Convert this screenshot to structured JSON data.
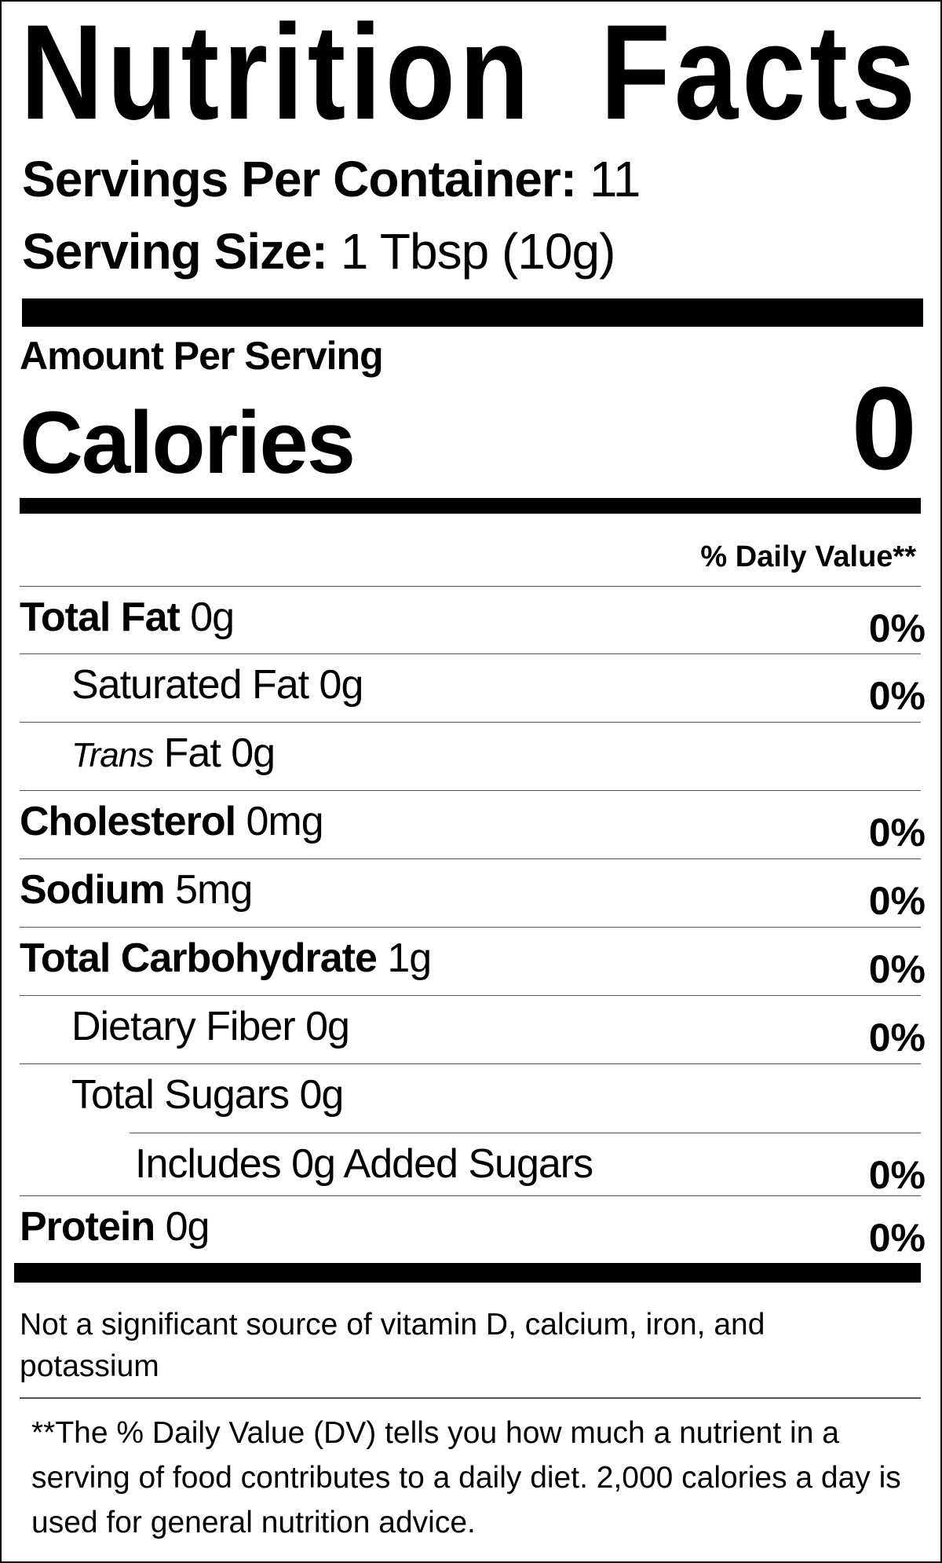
{
  "label": {
    "title": "Nutrition Facts",
    "servings_per_container_label": "Servings Per Container:",
    "servings_per_container_value": "11",
    "serving_size_label": "Serving Size:",
    "serving_size_value": "1 Tbsp (10g)",
    "amount_per_serving": "Amount Per Serving",
    "calories_label": "Calories",
    "calories_value": "0",
    "daily_value_header": "% Daily Value**",
    "nutrients": [
      {
        "name": "Total Fat",
        "italic_prefix": "",
        "amount": "0g",
        "dv": "0%",
        "bold": true,
        "indent": 0
      },
      {
        "name": "Saturated Fat",
        "italic_prefix": "",
        "amount": "0g",
        "dv": "0%",
        "bold": false,
        "indent": 1
      },
      {
        "name": "Fat",
        "italic_prefix": "Trans",
        "amount": "0g",
        "dv": "",
        "bold": false,
        "indent": 1
      },
      {
        "name": "Cholesterol",
        "italic_prefix": "",
        "amount": "0mg",
        "dv": "0%",
        "bold": true,
        "indent": 0
      },
      {
        "name": "Sodium",
        "italic_prefix": "",
        "amount": "5mg",
        "dv": "0%",
        "bold": true,
        "indent": 0
      },
      {
        "name": "Total Carbohydrate",
        "italic_prefix": "",
        "amount": "1g",
        "dv": "0%",
        "bold": true,
        "indent": 0
      },
      {
        "name": "Dietary Fiber",
        "italic_prefix": "",
        "amount": "0g",
        "dv": "0%",
        "bold": false,
        "indent": 1
      },
      {
        "name": "Total Sugars",
        "italic_prefix": "",
        "amount": "0g",
        "dv": "",
        "bold": false,
        "indent": 1
      },
      {
        "name": "Includes 0g Added Sugars",
        "italic_prefix": "",
        "amount": "",
        "dv": "0%",
        "bold": false,
        "indent": 2
      },
      {
        "name": "Protein",
        "italic_prefix": "",
        "amount": "0g",
        "dv": "0%",
        "bold": true,
        "indent": 0
      }
    ],
    "vitamin_note": "Not a significant source of vitamin D, calcium, iron, and potassium",
    "dv_footnote": "**The % Daily Value (DV) tells you how much a nutrient in a serving of food contributes to a daily diet. 2,000 calories a day is used for general nutrition advice."
  }
}
